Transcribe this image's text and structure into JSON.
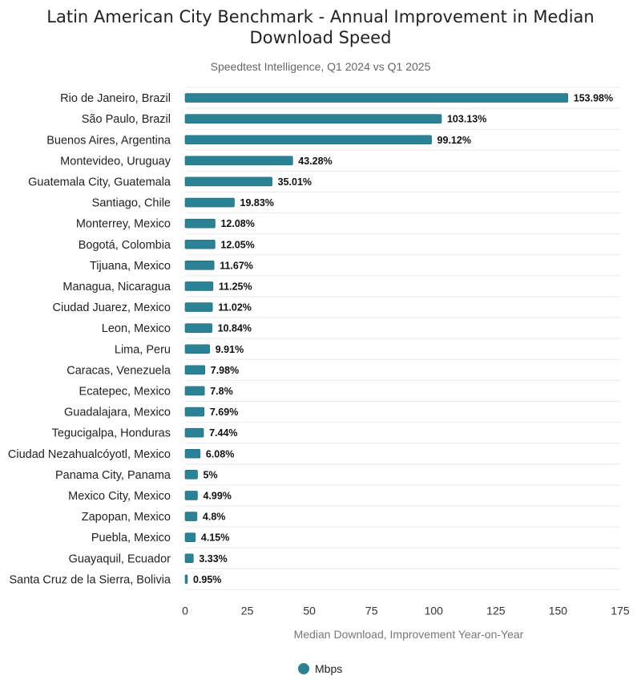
{
  "chart_data": {
    "type": "bar",
    "orientation": "horizontal",
    "title": "Latin American City Benchmark - Annual Improvement in Median Download Speed",
    "title_lines": [
      "Latin American City Benchmark - Annual Improvement in Median",
      "Download Speed"
    ],
    "subtitle": "Speedtest Intelligence, Q1 2024 vs Q1 2025",
    "xlabel": "Median Download, Improvement Year-on-Year",
    "ylabel": "",
    "xlim": [
      0,
      175
    ],
    "xticks": [
      0,
      25,
      50,
      75,
      100,
      125,
      150,
      175
    ],
    "categories": [
      "Rio de Janeiro, Brazil",
      "São Paulo, Brazil",
      "Buenos Aires, Argentina",
      "Montevideo, Uruguay",
      "Guatemala City, Guatemala",
      "Santiago, Chile",
      "Monterrey, Mexico",
      "Bogotá, Colombia",
      "Tijuana, Mexico",
      "Managua, Nicaragua",
      "Ciudad Juarez, Mexico",
      "Leon, Mexico",
      "Lima, Peru",
      "Caracas, Venezuela",
      "Ecatepec, Mexico",
      "Guadalajara, Mexico",
      "Tegucigalpa, Honduras",
      "Ciudad Nezahualcóyotl, Mexico",
      "Panama City, Panama",
      "Mexico City, Mexico",
      "Zapopan, Mexico",
      "Puebla, Mexico",
      "Guayaquil, Ecuador",
      "Santa Cruz de la Sierra, Bolivia"
    ],
    "series": [
      {
        "name": "Mbps",
        "color": "#2a8294",
        "values": [
          153.98,
          103.13,
          99.12,
          43.28,
          35.01,
          19.83,
          12.08,
          12.05,
          11.67,
          11.25,
          11.02,
          10.84,
          9.91,
          7.98,
          7.8,
          7.69,
          7.44,
          6.08,
          5,
          4.99,
          4.8,
          4.15,
          3.33,
          0.95
        ],
        "labels": [
          "153.98%",
          "103.13%",
          "99.12%",
          "43.28%",
          "35.01%",
          "19.83%",
          "12.08%",
          "12.05%",
          "11.67%",
          "11.25%",
          "11.02%",
          "10.84%",
          "9.91%",
          "7.98%",
          "7.8%",
          "7.69%",
          "7.44%",
          "6.08%",
          "5%",
          "4.99%",
          "4.8%",
          "4.15%",
          "3.33%",
          "0.95%"
        ]
      }
    ],
    "grid": true,
    "legend": {
      "position": "bottom-center",
      "entries": [
        "Mbps"
      ]
    }
  }
}
